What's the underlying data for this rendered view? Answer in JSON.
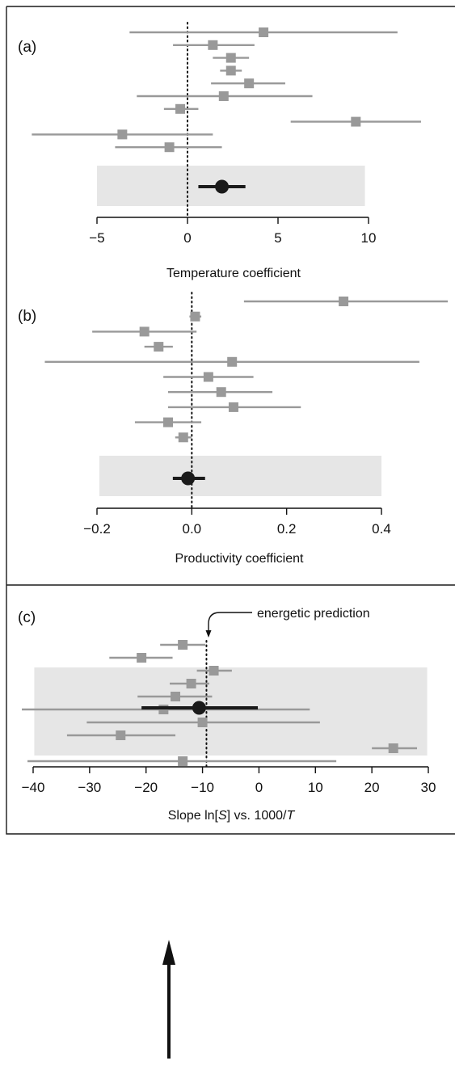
{
  "colors": {
    "estimate": "#999999",
    "pooled": "#1a1a1a",
    "band": "#e6e6e6",
    "frame": "#1a1a1a"
  },
  "chart_data": [
    {
      "type": "forest",
      "panel_label": "(a)",
      "xlabel": "Temperature coefficient",
      "xlim": [
        -5,
        10
      ],
      "ticks": [
        -5,
        0,
        5,
        10
      ],
      "tick_labels": [
        "−5",
        "0",
        "5",
        "10"
      ],
      "reference_line": 0,
      "estimates": [
        {
          "value": 4.2,
          "low": -3.2,
          "high": 11.6
        },
        {
          "value": 1.4,
          "low": -0.8,
          "high": 3.7
        },
        {
          "value": 2.4,
          "low": 1.4,
          "high": 3.4
        },
        {
          "value": 2.4,
          "low": 1.8,
          "high": 3.0
        },
        {
          "value": 3.4,
          "low": 1.3,
          "high": 5.4
        },
        {
          "value": 2.0,
          "low": -2.8,
          "high": 6.9
        },
        {
          "value": -0.4,
          "low": -1.3,
          "high": 0.6
        },
        {
          "value": 9.3,
          "low": 5.7,
          "high": 12.9
        },
        {
          "value": -3.6,
          "low": -8.6,
          "high": 1.4
        },
        {
          "value": -1.0,
          "low": -4.0,
          "high": 1.9
        }
      ],
      "pooled": {
        "value": 1.9,
        "low": 0.6,
        "high": 3.2
      },
      "band": [
        -5,
        9.8
      ]
    },
    {
      "type": "forest",
      "panel_label": "(b)",
      "xlabel": "Productivity coefficient",
      "xlim": [
        -0.2,
        0.4
      ],
      "ticks": [
        -0.2,
        0.0,
        0.2,
        0.4
      ],
      "tick_labels": [
        "−0.2",
        "0.0",
        "0.2",
        "0.4"
      ],
      "reference_line": 0,
      "estimates": [
        {
          "value": 0.32,
          "low": 0.11,
          "high": 0.54
        },
        {
          "value": 0.007,
          "low": -0.005,
          "high": 0.02
        },
        {
          "value": -0.1,
          "low": -0.21,
          "high": 0.01
        },
        {
          "value": -0.07,
          "low": -0.1,
          "high": -0.04
        },
        {
          "value": 0.085,
          "low": -0.31,
          "high": 0.48
        },
        {
          "value": 0.035,
          "low": -0.06,
          "high": 0.13
        },
        {
          "value": 0.062,
          "low": -0.05,
          "high": 0.17
        },
        {
          "value": 0.088,
          "low": -0.05,
          "high": 0.23
        },
        {
          "value": -0.05,
          "low": -0.12,
          "high": 0.02
        },
        {
          "value": -0.018,
          "low": -0.035,
          "high": -0.001
        }
      ],
      "pooled": {
        "value": -0.008,
        "low": -0.04,
        "high": 0.028
      },
      "band": [
        -0.195,
        0.4
      ]
    },
    {
      "type": "forest",
      "panel_label": "(c)",
      "xlabel_parts": [
        "Slope ln[",
        "S",
        "] vs. 1000/",
        "T"
      ],
      "xlim": [
        -40,
        30
      ],
      "ticks": [
        -40,
        -30,
        -20,
        -10,
        0,
        10,
        20,
        30
      ],
      "tick_labels": [
        "−40",
        "−30",
        "−20",
        "−10",
        "0",
        "10",
        "20",
        "30"
      ],
      "reference_line": -9.3,
      "annotation": "energetic prediction",
      "estimates": [
        {
          "value": -13.5,
          "low": -17.5,
          "high": -9.5
        },
        {
          "value": -20.8,
          "low": -26.5,
          "high": -15.3
        },
        {
          "value": -8.0,
          "low": -11.0,
          "high": -4.8
        },
        {
          "value": -12.0,
          "low": -15.8,
          "high": -8.8
        },
        {
          "value": -14.8,
          "low": -21.5,
          "high": -8.3
        },
        {
          "value": -16.9,
          "low": -42.0,
          "high": 9.0
        },
        {
          "value": -10.0,
          "low": -30.5,
          "high": 10.8
        },
        {
          "value": -24.5,
          "low": -34.0,
          "high": -14.8
        },
        {
          "value": 23.8,
          "low": 20.0,
          "high": 28.0
        },
        {
          "value": -13.5,
          "low": -41.0,
          "high": 13.7
        }
      ],
      "pooled": {
        "value": -10.6,
        "low": -20.8,
        "high": -0.2
      },
      "band": [
        -39.8,
        29.8
      ]
    }
  ]
}
